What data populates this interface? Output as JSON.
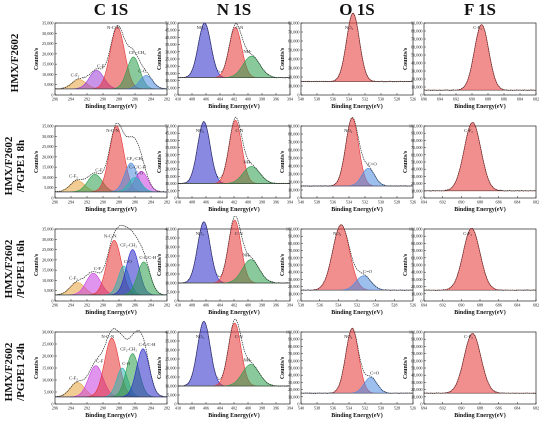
{
  "column_titles": [
    "C 1S",
    "N 1S",
    "O 1S",
    "F 1S"
  ],
  "row_labels": [
    [
      "HMX/F2602"
    ],
    [
      "HMX/F2602",
      "/PGPE1 8h"
    ],
    [
      "HMX/F2602",
      "/PGPE1 16h"
    ],
    [
      "HMX/F2602",
      "/PGPE1 24h"
    ]
  ],
  "chart_data": [
    {
      "row": 0,
      "col": 0,
      "type": "line",
      "xlabel": "Binding Energy(eV)",
      "ylabel": "Counts/s",
      "xlim": [
        296,
        282
      ],
      "ylim": [
        0,
        35000
      ],
      "xticks": [
        "296",
        "294",
        "292",
        "290",
        "288",
        "286",
        "284",
        "282"
      ],
      "yticks": [
        "0",
        "5,000",
        "10,000",
        "15,000",
        "20,000",
        "25,000",
        "30,000",
        "35,000"
      ],
      "baseline": 3000,
      "peaks": [
        {
          "label": "C-F₃",
          "center": 293.0,
          "height": 4500,
          "width": 0.9,
          "color": "#e6a23c"
        },
        {
          "label": "C-F",
          "center": 290.8,
          "height": 9000,
          "width": 0.9,
          "color": "#9b3bd6"
        },
        {
          "label": "N-C-N",
          "center": 288.2,
          "height": 30000,
          "width": 0.9,
          "color": "#e63232"
        },
        {
          "label": "CF₂-CH₂",
          "center": 286.2,
          "height": 15500,
          "width": 0.8,
          "color": "#2a9d4a"
        },
        {
          "label": "C-C",
          "center": 284.6,
          "height": 6500,
          "width": 0.8,
          "color": "#4a8ae0"
        }
      ]
    },
    {
      "row": 0,
      "col": 1,
      "type": "line",
      "xlabel": "Binding Energy(eV)",
      "ylabel": "Counts/s",
      "xlim": [
        410,
        394
      ],
      "ylim": [
        0,
        50000
      ],
      "xticks": [
        "410",
        "408",
        "406",
        "404",
        "402",
        "400",
        "398",
        "396",
        "394"
      ],
      "yticks": [
        "0",
        "5,000",
        "10,000",
        "15,000",
        "20,000",
        "25,000",
        "30,000",
        "35,000",
        "40,000",
        "45,000",
        "50,000"
      ],
      "baseline": 12000,
      "peaks": [
        {
          "label": "NO₂",
          "center": 406.2,
          "height": 38000,
          "width": 0.9,
          "color": "#2828c8"
        },
        {
          "label": "C-N",
          "center": 401.8,
          "height": 35000,
          "width": 0.9,
          "color": "#e63232"
        },
        {
          "label": "NH-",
          "center": 399.5,
          "height": 15000,
          "width": 1.2,
          "color": "#2a9d4a"
        }
      ]
    },
    {
      "row": 0,
      "col": 2,
      "type": "line",
      "xlabel": "Binding Energy(eV)",
      "ylabel": "Counts/s",
      "xlim": [
        540,
        526
      ],
      "ylim": [
        0,
        80000
      ],
      "xticks": [
        "540",
        "538",
        "536",
        "534",
        "532",
        "530",
        "528",
        "526"
      ],
      "yticks": [
        "0",
        "10,000",
        "20,000",
        "30,000",
        "40,000",
        "50,000",
        "60,000",
        "70,000",
        "80,000"
      ],
      "baseline": 15000,
      "peaks": [
        {
          "label": "NO₂",
          "center": 533.5,
          "height": 76000,
          "width": 0.8,
          "color": "#e63232"
        }
      ]
    },
    {
      "row": 0,
      "col": 3,
      "type": "line",
      "xlabel": "Binding Energy(eV)",
      "ylabel": "Counts/s",
      "xlim": [
        696,
        682
      ],
      "ylim": [
        0,
        90000
      ],
      "xticks": [
        "696",
        "694",
        "692",
        "690",
        "688",
        "686",
        "684",
        "682"
      ],
      "yticks": [
        "0",
        "10,000",
        "20,000",
        "30,000",
        "40,000",
        "50,000",
        "60,000",
        "70,000",
        "80,000",
        "90,000"
      ],
      "baseline": 6000,
      "peaks": [
        {
          "label": "C-F₂",
          "center": 688.8,
          "height": 82000,
          "width": 0.9,
          "color": "#e63232"
        }
      ]
    },
    {
      "row": 1,
      "col": 0,
      "type": "line",
      "xlabel": "Binding Energy(eV)",
      "ylabel": "Counts/s",
      "xlim": [
        296,
        282
      ],
      "ylim": [
        0,
        35000
      ],
      "xticks": [
        "296",
        "294",
        "292",
        "290",
        "288",
        "286",
        "284",
        "282"
      ],
      "yticks": [
        "0",
        "5,000",
        "10,000",
        "15,000",
        "20,000",
        "25,000",
        "30,000",
        "35,000"
      ],
      "baseline": 3000,
      "peaks": [
        {
          "label": "C-F₃",
          "center": 293.2,
          "height": 5500,
          "width": 0.9,
          "color": "#e6a23c"
        },
        {
          "label": "C-F",
          "center": 291.0,
          "height": 8500,
          "width": 0.9,
          "color": "#2a9d4a"
        },
        {
          "label": "N-C-N",
          "center": 288.3,
          "height": 32000,
          "width": 0.9,
          "color": "#e63232"
        },
        {
          "label": "CF₂-CH₂",
          "center": 286.5,
          "height": 14000,
          "width": 0.8,
          "color": "#4a8ae0"
        },
        {
          "label": "C-C/C-H",
          "center": 285.2,
          "height": 10000,
          "width": 0.8,
          "color": "#c83ce0"
        },
        {
          "label": "C-O",
          "center": 286.0,
          "height": 7000,
          "width": 0.8,
          "color": "#2ab4b4"
        }
      ]
    },
    {
      "row": 1,
      "col": 1,
      "type": "line",
      "xlabel": "Binding Energy(eV)",
      "ylabel": "Counts/s",
      "xlim": [
        410,
        394
      ],
      "ylim": [
        0,
        50000
      ],
      "xticks": [
        "410",
        "408",
        "406",
        "404",
        "402",
        "400",
        "398",
        "396",
        "394"
      ],
      "yticks": [
        "0",
        "5,000",
        "10,000",
        "15,000",
        "20,000",
        "25,000",
        "30,000",
        "35,000",
        "40,000",
        "45,000",
        "50,000"
      ],
      "baseline": 10000,
      "peaks": [
        {
          "label": "NO₂",
          "center": 406.3,
          "height": 43000,
          "width": 0.9,
          "color": "#2828c8"
        },
        {
          "label": "C-N",
          "center": 401.8,
          "height": 44000,
          "width": 0.9,
          "color": "#e63232"
        },
        {
          "label": "NH-",
          "center": 399.5,
          "height": 12000,
          "width": 1.2,
          "color": "#2a9d4a"
        }
      ]
    },
    {
      "row": 1,
      "col": 2,
      "type": "line",
      "xlabel": "Binding Energy(eV)",
      "ylabel": "Counts/s",
      "xlim": [
        540,
        526
      ],
      "ylim": [
        0,
        90000
      ],
      "xticks": [
        "540",
        "538",
        "536",
        "534",
        "532",
        "530",
        "528",
        "526"
      ],
      "yticks": [
        "0",
        "10,000",
        "20,000",
        "30,000",
        "40,000",
        "50,000",
        "60,000",
        "70,000",
        "80,000",
        "90,000"
      ],
      "baseline": 15000,
      "peaks": [
        {
          "label": "NO₂",
          "center": 533.6,
          "height": 85000,
          "width": 0.8,
          "color": "#e63232"
        },
        {
          "label": "C=O",
          "center": 531.6,
          "height": 22000,
          "width": 0.8,
          "color": "#4a8ae0"
        }
      ]
    },
    {
      "row": 1,
      "col": 3,
      "type": "line",
      "xlabel": "Binding Energy(eV)",
      "ylabel": "Counts/s",
      "xlim": [
        694,
        682
      ],
      "ylim": [
        0,
        100000
      ],
      "xticks": [
        "694",
        "692",
        "690",
        "688",
        "686",
        "684",
        "682"
      ],
      "yticks": [
        "0",
        "10,000",
        "20,000",
        "30,000",
        "40,000",
        "50,000",
        "60,000",
        "70,000",
        "80,000",
        "90,000",
        "100,000"
      ],
      "baseline": 10000,
      "peaks": [
        {
          "label": "C-F₂",
          "center": 688.8,
          "height": 95000,
          "width": 0.9,
          "color": "#e63232"
        }
      ]
    },
    {
      "row": 2,
      "col": 0,
      "type": "line",
      "xlabel": "Binding Energy(eV)",
      "ylabel": "Counts/s",
      "xlim": [
        296,
        282
      ],
      "ylim": [
        0,
        35000
      ],
      "xticks": [
        "296",
        "294",
        "292",
        "290",
        "288",
        "286",
        "284",
        "282"
      ],
      "yticks": [
        "0",
        "5,000",
        "10,000",
        "15,000",
        "20,000",
        "25,000",
        "30,000",
        "35,000"
      ],
      "baseline": 3000,
      "peaks": [
        {
          "label": "C-F₃",
          "center": 293.2,
          "height": 6000,
          "width": 0.9,
          "color": "#e6a23c"
        },
        {
          "label": "C-F",
          "center": 291.2,
          "height": 10500,
          "width": 0.9,
          "color": "#c83ce0"
        },
        {
          "label": "N-C-N",
          "center": 288.6,
          "height": 26500,
          "width": 0.9,
          "color": "#e63232"
        },
        {
          "label": "C-O",
          "center": 287.4,
          "height": 14000,
          "width": 0.7,
          "color": "#2ab4b4"
        },
        {
          "label": "CF₂-CH₂",
          "center": 286.3,
          "height": 22000,
          "width": 0.8,
          "color": "#2828c8"
        },
        {
          "label": "C-C/C-H",
          "center": 284.9,
          "height": 16000,
          "width": 0.8,
          "color": "#2a9d4a"
        }
      ]
    },
    {
      "row": 2,
      "col": 1,
      "type": "line",
      "xlabel": "Binding Energy(eV)",
      "ylabel": "Counts/s",
      "xlim": [
        410,
        394
      ],
      "ylim": [
        0,
        40000
      ],
      "xticks": [
        "410",
        "408",
        "406",
        "404",
        "402",
        "400",
        "398",
        "396",
        "394"
      ],
      "yticks": [
        "0",
        "5,000",
        "10,000",
        "15,000",
        "20,000",
        "25,000",
        "30,000",
        "35,000",
        "40,000"
      ],
      "baseline": 10000,
      "peaks": [
        {
          "label": "NO₂",
          "center": 406.3,
          "height": 34000,
          "width": 0.9,
          "color": "#2828c8"
        },
        {
          "label": "C-N",
          "center": 401.9,
          "height": 35000,
          "width": 0.9,
          "color": "#e63232"
        },
        {
          "label": "NH-",
          "center": 399.6,
          "height": 13000,
          "width": 1.2,
          "color": "#2a9d4a"
        }
      ]
    },
    {
      "row": 2,
      "col": 2,
      "type": "line",
      "xlabel": "Binding Energy(eV)",
      "ylabel": "Counts/s",
      "xlim": [
        538,
        526
      ],
      "ylim": [
        0,
        100000
      ],
      "xticks": [
        "538",
        "536",
        "534",
        "532",
        "530",
        "528",
        "526"
      ],
      "yticks": [
        "0",
        "10,000",
        "20,000",
        "30,000",
        "40,000",
        "50,000",
        "60,000",
        "70,000",
        "80,000",
        "90,000",
        "100,000"
      ],
      "baseline": 15000,
      "peaks": [
        {
          "label": "NO₂",
          "center": 533.7,
          "height": 91000,
          "width": 0.9,
          "color": "#e63232"
        },
        {
          "label": "C=O",
          "center": 531.3,
          "height": 20000,
          "width": 0.8,
          "color": "#4a8ae0"
        }
      ]
    },
    {
      "row": 2,
      "col": 3,
      "type": "line",
      "xlabel": "Binding Energy(eV)",
      "ylabel": "Counts/s",
      "xlim": [
        694,
        682
      ],
      "ylim": [
        0,
        100000
      ],
      "xticks": [
        "694",
        "692",
        "690",
        "688",
        "686",
        "684",
        "682"
      ],
      "yticks": [
        "0",
        "10,000",
        "20,000",
        "30,000",
        "40,000",
        "50,000",
        "60,000",
        "70,000",
        "80,000",
        "90,000",
        "100,000"
      ],
      "baseline": 15000,
      "peaks": [
        {
          "label": "C-F₂",
          "center": 688.9,
          "height": 86000,
          "width": 0.9,
          "color": "#e63232"
        }
      ]
    },
    {
      "row": 3,
      "col": 0,
      "type": "line",
      "xlabel": "Binding Energy(eV)",
      "ylabel": "Counts/s",
      "xlim": [
        296,
        282
      ],
      "ylim": [
        0,
        30000
      ],
      "xticks": [
        "296",
        "294",
        "292",
        "290",
        "288",
        "286",
        "284",
        "282"
      ],
      "yticks": [
        "0",
        "5,000",
        "10,000",
        "15,000",
        "20,000",
        "25,000",
        "30,000"
      ],
      "baseline": 3000,
      "peaks": [
        {
          "label": "C-F₃",
          "center": 293.2,
          "height": 6000,
          "width": 0.9,
          "color": "#e6a23c"
        },
        {
          "label": "C-F",
          "center": 290.9,
          "height": 13000,
          "width": 0.9,
          "color": "#c83ce0"
        },
        {
          "label": "N-C-N",
          "center": 288.9,
          "height": 24500,
          "width": 0.9,
          "color": "#e63232"
        },
        {
          "label": "C-O",
          "center": 287.6,
          "height": 12000,
          "width": 0.7,
          "color": "#2ab4b4"
        },
        {
          "label": "CF₂-CH₂",
          "center": 286.3,
          "height": 18000,
          "width": 0.8,
          "color": "#2a9d4a"
        },
        {
          "label": "C-C/C-H",
          "center": 285.0,
          "height": 20000,
          "width": 0.8,
          "color": "#2828c8"
        }
      ]
    },
    {
      "row": 3,
      "col": 1,
      "type": "line",
      "xlabel": "Binding Energy(eV)",
      "ylabel": "Counts/s",
      "xlim": [
        410,
        394
      ],
      "ylim": [
        0,
        40000
      ],
      "xticks": [
        "410",
        "408",
        "406",
        "404",
        "402",
        "400",
        "398",
        "396",
        "394"
      ],
      "yticks": [
        "0",
        "5,000",
        "10,000",
        "15,000",
        "20,000",
        "25,000",
        "30,000",
        "35,000",
        "40,000"
      ],
      "baseline": 10000,
      "peaks": [
        {
          "label": "NO₂",
          "center": 406.3,
          "height": 36000,
          "width": 0.9,
          "color": "#2828c8"
        },
        {
          "label": "C-N",
          "center": 401.9,
          "height": 35000,
          "width": 0.9,
          "color": "#e63232"
        },
        {
          "label": "-NH-",
          "center": 399.6,
          "height": 12000,
          "width": 1.2,
          "color": "#2a9d4a"
        }
      ]
    },
    {
      "row": 3,
      "col": 2,
      "type": "line",
      "xlabel": "Binding Energy(eV)",
      "ylabel": "Counts/s",
      "xlim": [
        540,
        526
      ],
      "ylim": [
        0,
        100000
      ],
      "xticks": [
        "540",
        "538",
        "536",
        "534",
        "532",
        "530",
        "528",
        "526"
      ],
      "yticks": [
        "0",
        "10,000",
        "20,000",
        "30,000",
        "40,000",
        "50,000",
        "60,000",
        "70,000",
        "80,000",
        "90,000",
        "100,000"
      ],
      "baseline": 15000,
      "peaks": [
        {
          "label": "NO₂",
          "center": 533.6,
          "height": 90000,
          "width": 0.8,
          "color": "#e63232"
        },
        {
          "label": "C=O",
          "center": 531.3,
          "height": 22000,
          "width": 0.8,
          "color": "#4a8ae0"
        }
      ]
    },
    {
      "row": 3,
      "col": 3,
      "type": "line",
      "xlabel": "Binding Energy(eV)",
      "ylabel": "Counts/s",
      "xlim": [
        694,
        682
      ],
      "ylim": [
        0,
        100000
      ],
      "xticks": [
        "694",
        "692",
        "690",
        "688",
        "686",
        "684",
        "682"
      ],
      "yticks": [
        "0",
        "10,000",
        "20,000",
        "30,000",
        "40,000",
        "50,000",
        "60,000",
        "70,000",
        "80,000",
        "90,000",
        "100,000"
      ],
      "baseline": 15000,
      "peaks": [
        {
          "label": "C-F₂",
          "center": 688.8,
          "height": 83000,
          "width": 0.9,
          "color": "#e63232"
        }
      ]
    }
  ]
}
